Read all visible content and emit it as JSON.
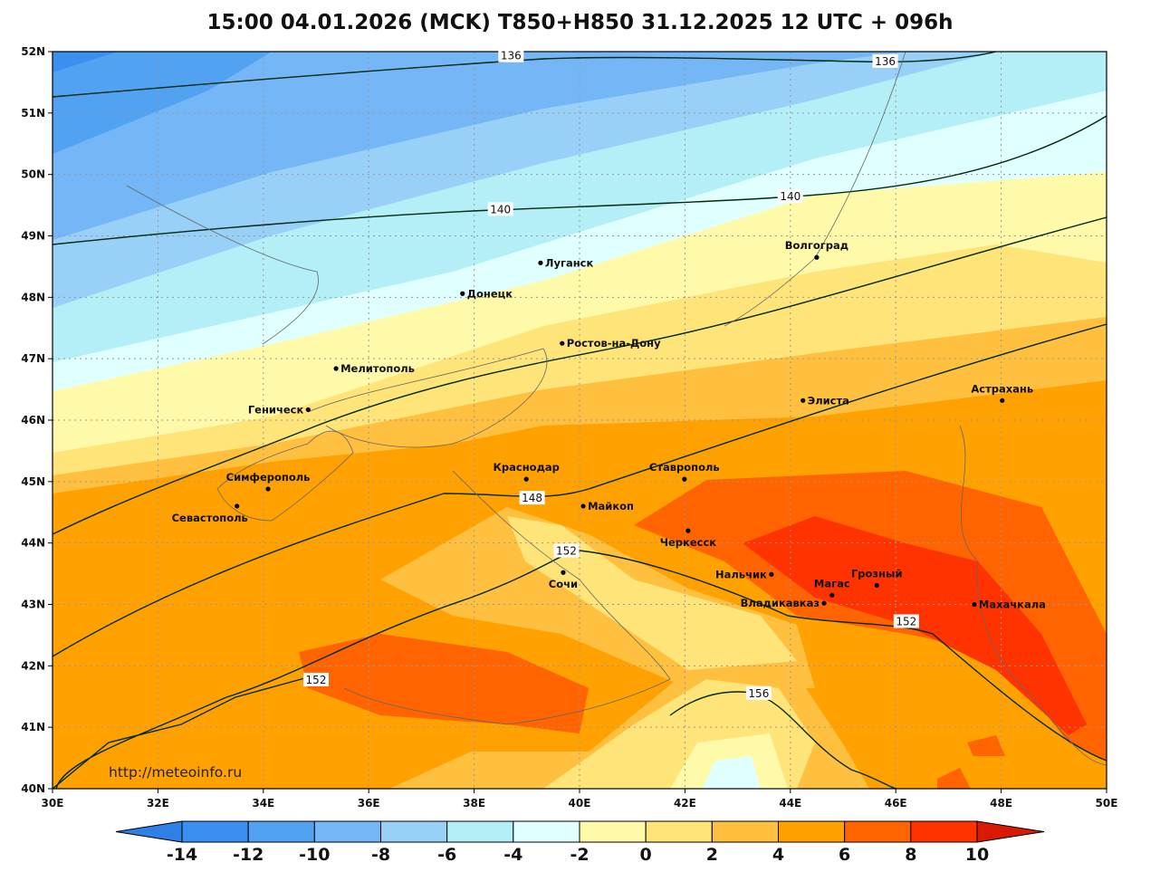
{
  "title": "15:00 04.01.2026 (MCK) T850+H850 31.12.2025 12 UTC + 096h",
  "watermark": "http://meteoinfo.ru",
  "map": {
    "lon_range": [
      30,
      50
    ],
    "lat_range": [
      40,
      52
    ]
  },
  "lon_ticks": [
    "30E",
    "32E",
    "34E",
    "36E",
    "38E",
    "40E",
    "42E",
    "44E",
    "46E",
    "48E",
    "50E"
  ],
  "lat_ticks": [
    "52N",
    "51N",
    "50N",
    "49N",
    "48N",
    "47N",
    "46N",
    "45N",
    "44N",
    "43N",
    "42N",
    "41N",
    "40N"
  ],
  "colorbar": {
    "labels": [
      "-14",
      "-12",
      "-10",
      "-8",
      "-6",
      "-4",
      "-2",
      "0",
      "2",
      "4",
      "6",
      "8",
      "10"
    ],
    "colors": [
      "#3a8ff0",
      "#52a2f2",
      "#75b6f6",
      "#98d0f8",
      "#b4eef6",
      "#e0ffff",
      "#fff9aa",
      "#ffe479",
      "#ffc040",
      "#ffa100",
      "#ff6400",
      "#ff3300"
    ],
    "under_color": "#2f80e6",
    "over_color": "#d91a00"
  },
  "contour_labels": [
    {
      "text": "136",
      "lon": 38.7,
      "lat": 51.93
    },
    {
      "text": "136",
      "lon": 45.8,
      "lat": 51.84
    },
    {
      "text": "140",
      "lon": 38.5,
      "lat": 49.43
    },
    {
      "text": "140",
      "lon": 44.0,
      "lat": 49.64
    },
    {
      "text": "148",
      "lon": 39.1,
      "lat": 44.73
    },
    {
      "text": "152",
      "lon": 39.75,
      "lat": 43.87
    },
    {
      "text": "152",
      "lon": 46.2,
      "lat": 42.72
    },
    {
      "text": "152",
      "lon": 35.0,
      "lat": 41.77
    },
    {
      "text": "156",
      "lon": 43.4,
      "lat": 41.55
    }
  ],
  "cities": [
    {
      "name": "Волгоград",
      "lon": 44.5,
      "lat": 48.65,
      "anchor": "above"
    },
    {
      "name": "Луганск",
      "lon": 39.26,
      "lat": 48.56,
      "anchor": "right"
    },
    {
      "name": "Донецк",
      "lon": 37.78,
      "lat": 48.06,
      "anchor": "right"
    },
    {
      "name": "Ростов-на-Дону",
      "lon": 39.67,
      "lat": 47.25,
      "anchor": "right"
    },
    {
      "name": "Мелитополь",
      "lon": 35.38,
      "lat": 46.84,
      "anchor": "right"
    },
    {
      "name": "Геническ",
      "lon": 34.85,
      "lat": 46.17,
      "anchor": "left"
    },
    {
      "name": "Элиста",
      "lon": 44.24,
      "lat": 46.32,
      "anchor": "right"
    },
    {
      "name": "Астрахань",
      "lon": 48.02,
      "lat": 46.32,
      "anchor": "above"
    },
    {
      "name": "Симферополь",
      "lon": 34.09,
      "lat": 44.88,
      "anchor": "above"
    },
    {
      "name": "Севастополь",
      "lon": 33.5,
      "lat": 44.6,
      "anchor": "below"
    },
    {
      "name": "Краснодар",
      "lon": 38.99,
      "lat": 45.04,
      "anchor": "above"
    },
    {
      "name": "Ставрополь",
      "lon": 41.99,
      "lat": 45.04,
      "anchor": "above"
    },
    {
      "name": "Майкоп",
      "lon": 40.07,
      "lat": 44.6,
      "anchor": "right"
    },
    {
      "name": "Черкесск",
      "lon": 42.06,
      "lat": 44.2,
      "anchor": "below"
    },
    {
      "name": "Сочи",
      "lon": 39.69,
      "lat": 43.52,
      "anchor": "below"
    },
    {
      "name": "Нальчик",
      "lon": 43.64,
      "lat": 43.49,
      "anchor": "left"
    },
    {
      "name": "Магас",
      "lon": 44.79,
      "lat": 43.15,
      "anchor": "above"
    },
    {
      "name": "Владикавказ",
      "lon": 44.64,
      "lat": 43.02,
      "anchor": "left"
    },
    {
      "name": "Грозный",
      "lon": 45.64,
      "lat": 43.31,
      "anchor": "above"
    },
    {
      "name": "Махачкала",
      "lon": 47.49,
      "lat": 43.0,
      "anchor": "right"
    }
  ]
}
